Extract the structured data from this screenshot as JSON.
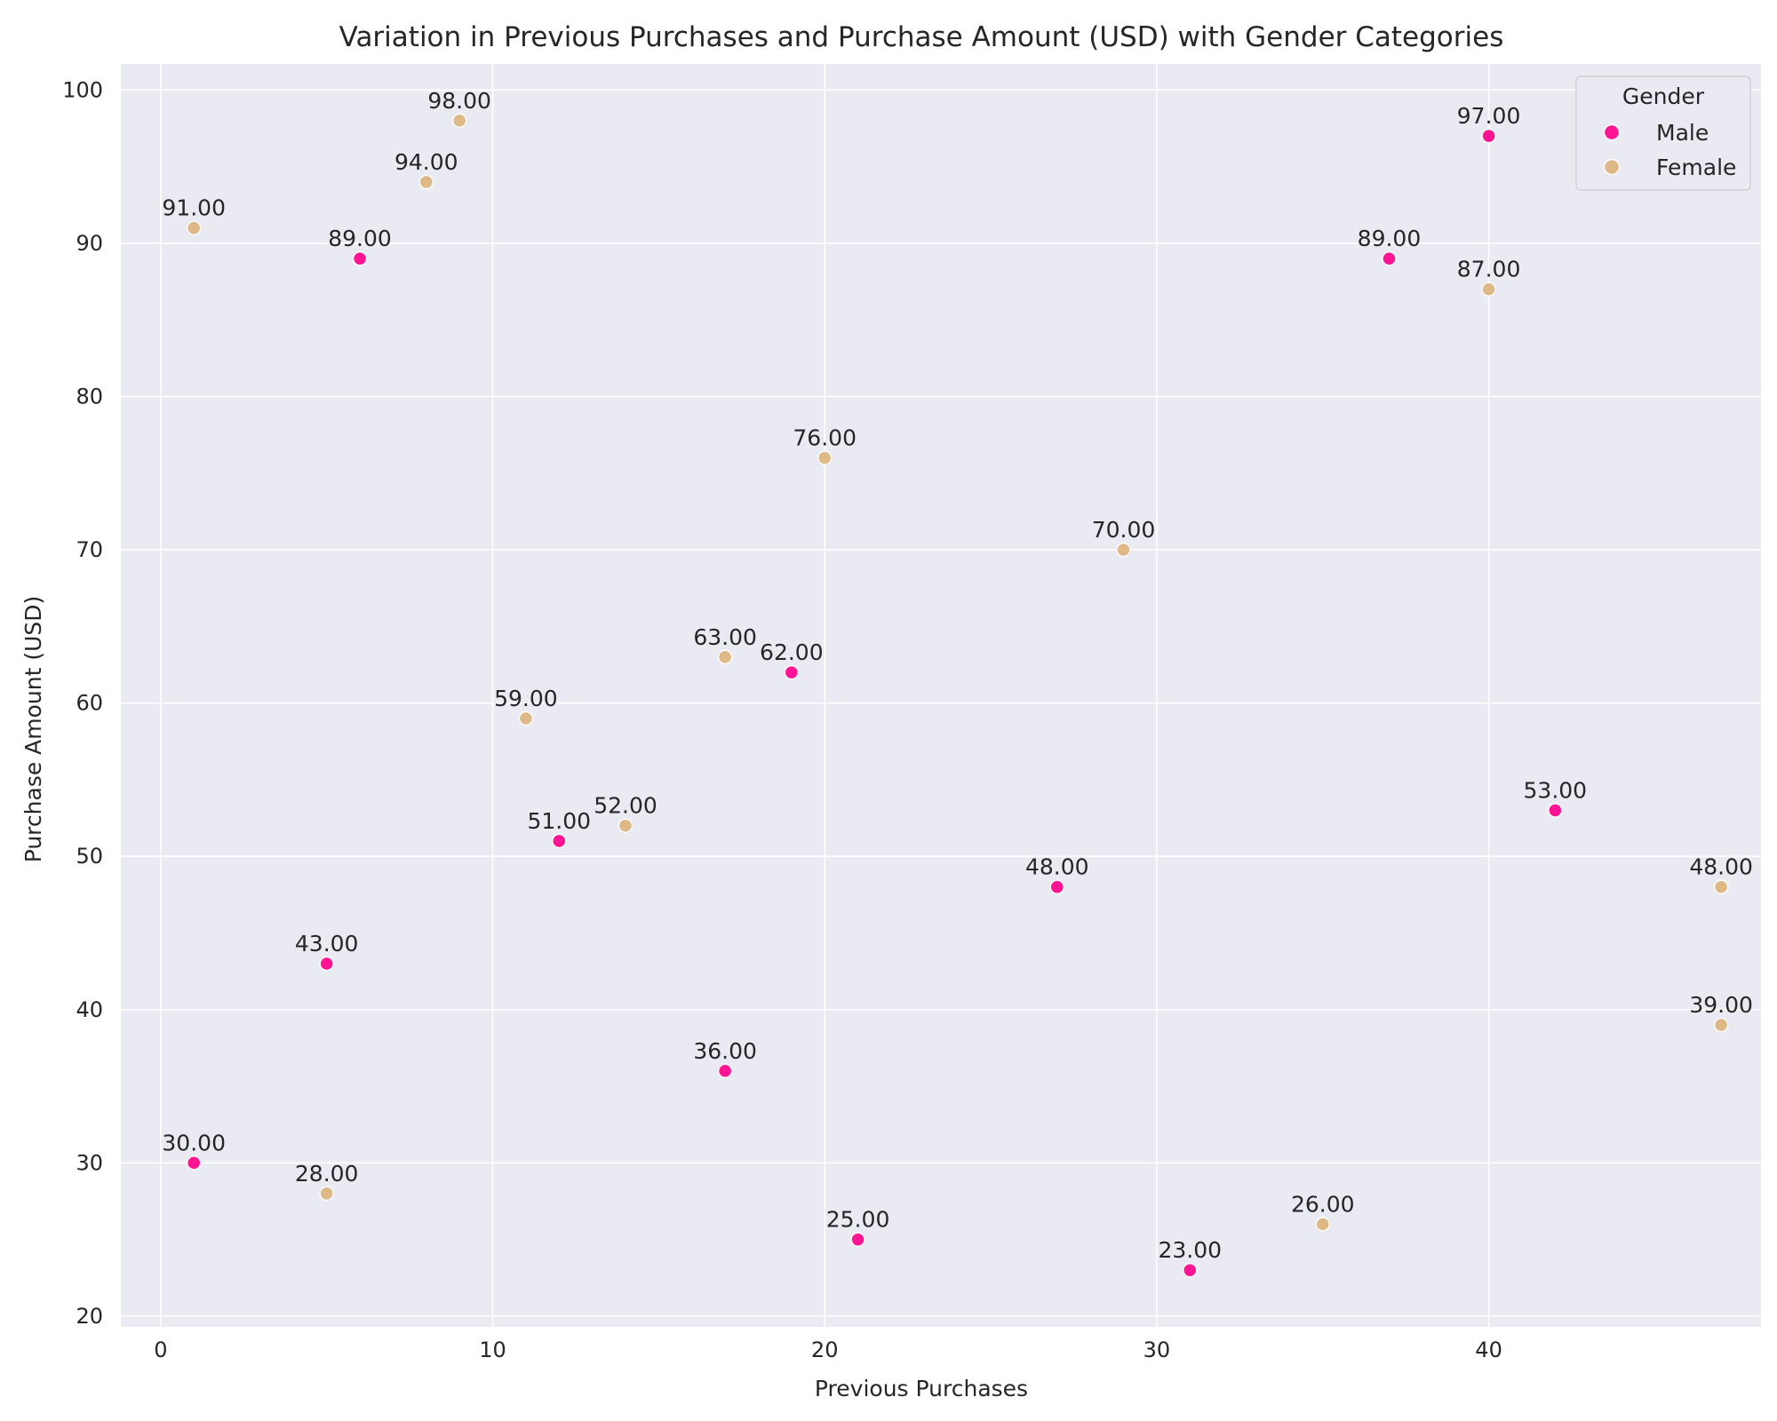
{
  "chart_data": {
    "type": "scatter",
    "title": "Variation in Previous Purchases and Purchase Amount (USD) with Gender Categories",
    "xlabel": "Previous Purchases",
    "ylabel": "Purchase Amount (USD)",
    "xlim": [
      -1.2,
      48.2
    ],
    "ylim": [
      19.3,
      101.7
    ],
    "xticks": [
      0,
      10,
      20,
      30,
      40
    ],
    "yticks": [
      20,
      30,
      40,
      50,
      60,
      70,
      80,
      90,
      100
    ],
    "grid": true,
    "legend": {
      "title": "Gender",
      "position": "top-right"
    },
    "colors": {
      "Male": "#ff1493",
      "Female": "#deb887",
      "background": "#eaeaf2",
      "grid": "#ffffff"
    },
    "series": [
      {
        "name": "Male",
        "points": [
          {
            "x": 1,
            "y": 30,
            "label": "30.00"
          },
          {
            "x": 5,
            "y": 43,
            "label": "43.00"
          },
          {
            "x": 6,
            "y": 89,
            "label": "89.00"
          },
          {
            "x": 12,
            "y": 51,
            "label": "51.00"
          },
          {
            "x": 17,
            "y": 36,
            "label": "36.00"
          },
          {
            "x": 19,
            "y": 62,
            "label": "62.00"
          },
          {
            "x": 21,
            "y": 25,
            "label": "25.00"
          },
          {
            "x": 27,
            "y": 48,
            "label": "48.00"
          },
          {
            "x": 31,
            "y": 23,
            "label": "23.00"
          },
          {
            "x": 37,
            "y": 89,
            "label": "89.00"
          },
          {
            "x": 40,
            "y": 97,
            "label": "97.00"
          },
          {
            "x": 42,
            "y": 53,
            "label": "53.00"
          }
        ]
      },
      {
        "name": "Female",
        "points": [
          {
            "x": 1,
            "y": 91,
            "label": "91.00"
          },
          {
            "x": 5,
            "y": 28,
            "label": "28.00"
          },
          {
            "x": 8,
            "y": 94,
            "label": "94.00"
          },
          {
            "x": 9,
            "y": 98,
            "label": "98.00"
          },
          {
            "x": 11,
            "y": 59,
            "label": "59.00"
          },
          {
            "x": 14,
            "y": 52,
            "label": "52.00"
          },
          {
            "x": 17,
            "y": 63,
            "label": "63.00"
          },
          {
            "x": 20,
            "y": 76,
            "label": "76.00"
          },
          {
            "x": 29,
            "y": 70,
            "label": "70.00"
          },
          {
            "x": 35,
            "y": 26,
            "label": "26.00"
          },
          {
            "x": 40,
            "y": 87,
            "label": "87.00"
          },
          {
            "x": 47,
            "y": 48,
            "label": "48.00"
          },
          {
            "x": 47,
            "y": 39,
            "label": "39.00"
          }
        ]
      }
    ]
  }
}
